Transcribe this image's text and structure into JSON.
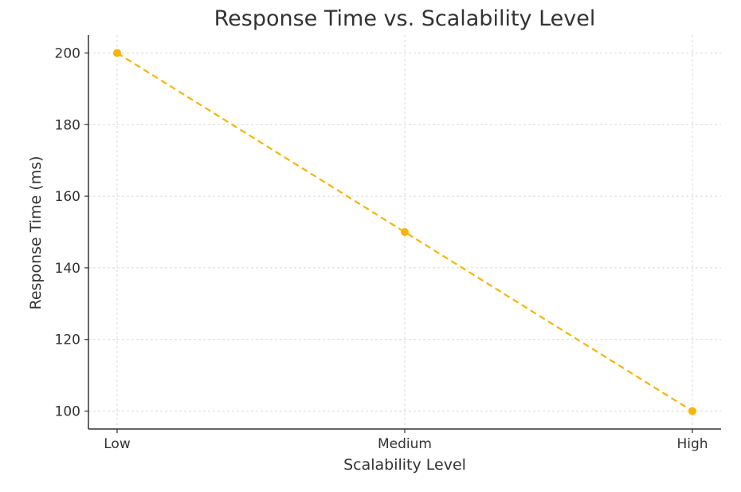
{
  "chart_data": {
    "type": "line",
    "title": "Response Time vs. Scalability Level",
    "xlabel": "Scalability Level",
    "ylabel": "Response Time (ms)",
    "categories": [
      "Low",
      "Medium",
      "High"
    ],
    "series": [
      {
        "values": [
          200,
          150,
          100
        ],
        "color": "#f5b50a",
        "line_style": "dashed",
        "marker": "circle"
      }
    ],
    "yticks": [
      100,
      120,
      140,
      160,
      180,
      200
    ],
    "ylim": [
      95,
      205
    ],
    "grid": true,
    "legend": "none"
  }
}
